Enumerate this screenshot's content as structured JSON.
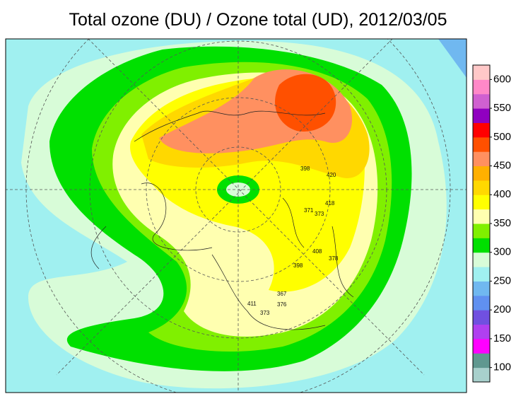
{
  "title": "Total ozone (DU) / Ozone total (UD), 2012/03/05",
  "colorbar": {
    "lim": [
      100,
      600
    ],
    "ticks": [
      100,
      150,
      200,
      250,
      300,
      350,
      400,
      450,
      500,
      550,
      600
    ],
    "colors": [
      "#a8d0cc",
      "#609890",
      "#ff00ff",
      "#b040f0",
      "#7050e0",
      "#6090f0",
      "#70b8f0",
      "#a0f0f0",
      "#d8fcd8",
      "#00e000",
      "#80f000",
      "#ffffb0",
      "#ffff00",
      "#ffd800",
      "#ffb000",
      "#ff9060",
      "#ff5000",
      "#ff0000",
      "#9000c0",
      "#d060d0",
      "#ff88c8",
      "#ffc8c8"
    ]
  },
  "stations": [
    398,
    373,
    371,
    418,
    420,
    408,
    378,
    367,
    376,
    373,
    411,
    398
  ]
}
